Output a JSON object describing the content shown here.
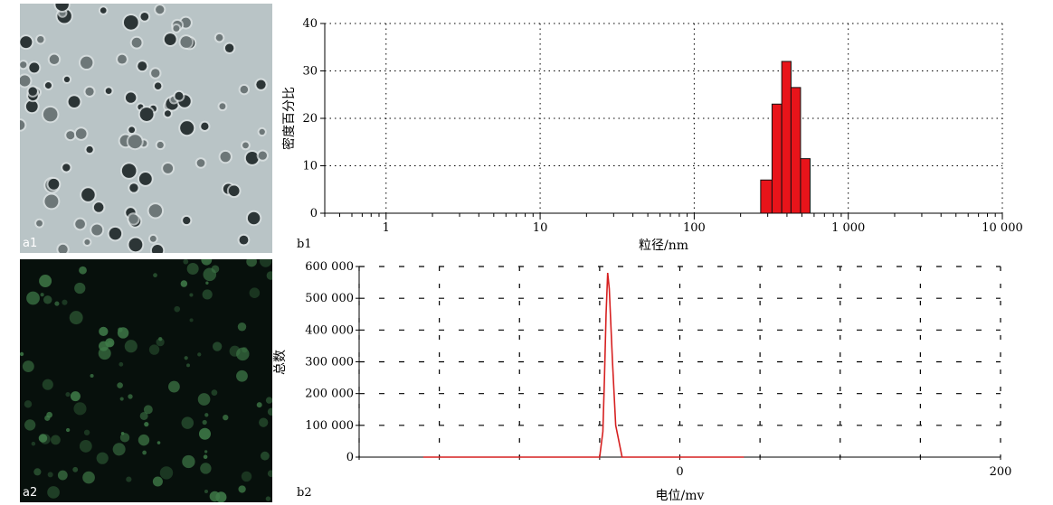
{
  "panels": {
    "a1": {
      "tag": "a1"
    },
    "a2": {
      "tag": "a2"
    }
  },
  "chart_data": [
    {
      "id": "b1",
      "panel_tag": "b1",
      "type": "bar",
      "xscale": "log",
      "xlabel": "粒径/nm",
      "ylabel": "密度百分比",
      "xlim": [
        0.4,
        10000
      ],
      "ylim": [
        0,
        40
      ],
      "xticks": [
        1,
        10,
        100,
        1000,
        10000
      ],
      "xtick_labels": [
        "1",
        "10",
        "100",
        "1 000",
        "10 000"
      ],
      "yticks": [
        0,
        10,
        20,
        30,
        40
      ],
      "ytick_labels": [
        "0",
        "10",
        "20",
        "30",
        "40"
      ],
      "grid": true,
      "bar_color": "#e8141a",
      "bins": [
        {
          "from": 270,
          "to": 320,
          "value": 7
        },
        {
          "from": 320,
          "to": 370,
          "value": 23
        },
        {
          "from": 370,
          "to": 425,
          "value": 32
        },
        {
          "from": 425,
          "to": 490,
          "value": 26.5
        },
        {
          "from": 490,
          "to": 565,
          "value": 11.5
        }
      ]
    },
    {
      "id": "b2",
      "panel_tag": "b2",
      "type": "line",
      "xlabel": "电位/mv",
      "ylabel": "总数",
      "xlim": [
        -200,
        200
      ],
      "ylim": [
        0,
        600000
      ],
      "xticks": [
        0,
        200
      ],
      "xtick_labels": [
        "0",
        "200"
      ],
      "yticks": [
        0,
        100000,
        200000,
        300000,
        400000,
        500000,
        600000
      ],
      "ytick_labels": [
        "0",
        "100 000",
        "200 000",
        "300 000",
        "400 000",
        "500 000",
        "600 000"
      ],
      "grid": true,
      "line_color": "#d62020",
      "series": [
        {
          "x": [
            -160,
            -120,
            -80,
            -60,
            -50,
            -48,
            -47,
            -46,
            -45,
            -44,
            -42,
            -40,
            -36,
            -30,
            0,
            40
          ],
          "y": [
            0,
            0,
            0,
            0,
            0,
            80000,
            250000,
            450000,
            580000,
            530000,
            300000,
            100000,
            0,
            0,
            0,
            0
          ]
        }
      ]
    }
  ]
}
